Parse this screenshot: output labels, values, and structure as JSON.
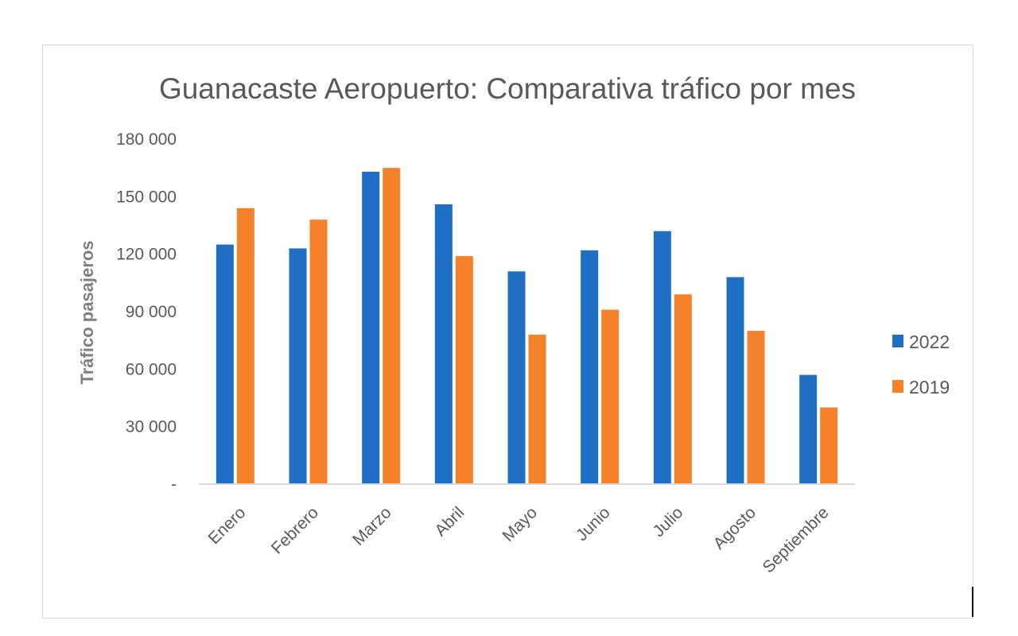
{
  "chart_data": {
    "type": "bar",
    "title": "Guanacaste Aeropuerto: Comparativa tráfico por mes",
    "xlabel": "",
    "ylabel": "Tráfico pasajeros",
    "categories": [
      "Enero",
      "Febrero",
      "Marzo",
      "Abril",
      "Mayo",
      "Junio",
      "Julio",
      "Agosto",
      "Septiembre"
    ],
    "series": [
      {
        "name": "2022",
        "color": "#1f6fc5",
        "values": [
          125000,
          123000,
          163000,
          146000,
          111000,
          122000,
          132000,
          108000,
          57000
        ]
      },
      {
        "name": "2019",
        "color": "#f5822a",
        "values": [
          144000,
          138000,
          165000,
          119000,
          78000,
          91000,
          99000,
          80000,
          40000
        ]
      }
    ],
    "ylim": [
      0,
      180000
    ],
    "yticks": [
      0,
      30000,
      60000,
      90000,
      120000,
      150000,
      180000
    ],
    "ytick_labels": [
      "-",
      "30 000",
      "60 000",
      "90 000",
      "120 000",
      "150 000",
      "180 000"
    ],
    "grid": false,
    "legend_position": "right"
  }
}
